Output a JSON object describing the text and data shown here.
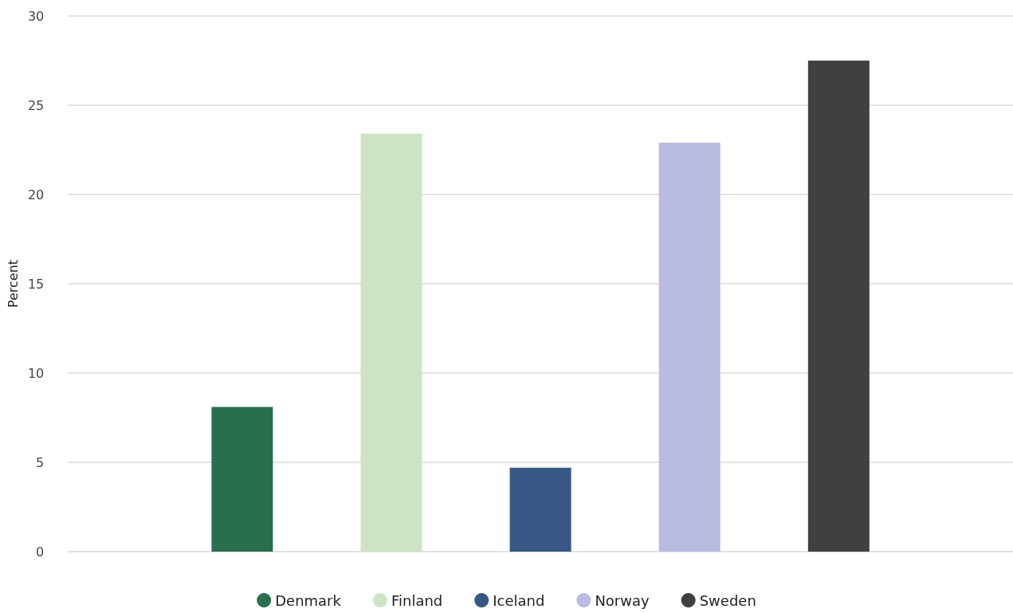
{
  "chart_data": {
    "type": "bar",
    "ylabel": "Percent",
    "categories": [
      null
    ],
    "series": [
      {
        "name": "Denmark",
        "color": "#2a6e50",
        "values": [
          8.1
        ]
      },
      {
        "name": "Finland",
        "color": "#cde4c4",
        "values": [
          23.4
        ]
      },
      {
        "name": "Iceland",
        "color": "#375885",
        "values": [
          4.7
        ]
      },
      {
        "name": "Norway",
        "color": "#babbe0",
        "values": [
          22.9
        ]
      },
      {
        "name": "Sweden",
        "color": "#404040",
        "values": [
          27.5
        ]
      }
    ],
    "ylim": [
      0,
      30
    ],
    "yticks": [
      0,
      5,
      10,
      15,
      20,
      25,
      30
    ],
    "grid": "y",
    "legend": "bottom"
  }
}
